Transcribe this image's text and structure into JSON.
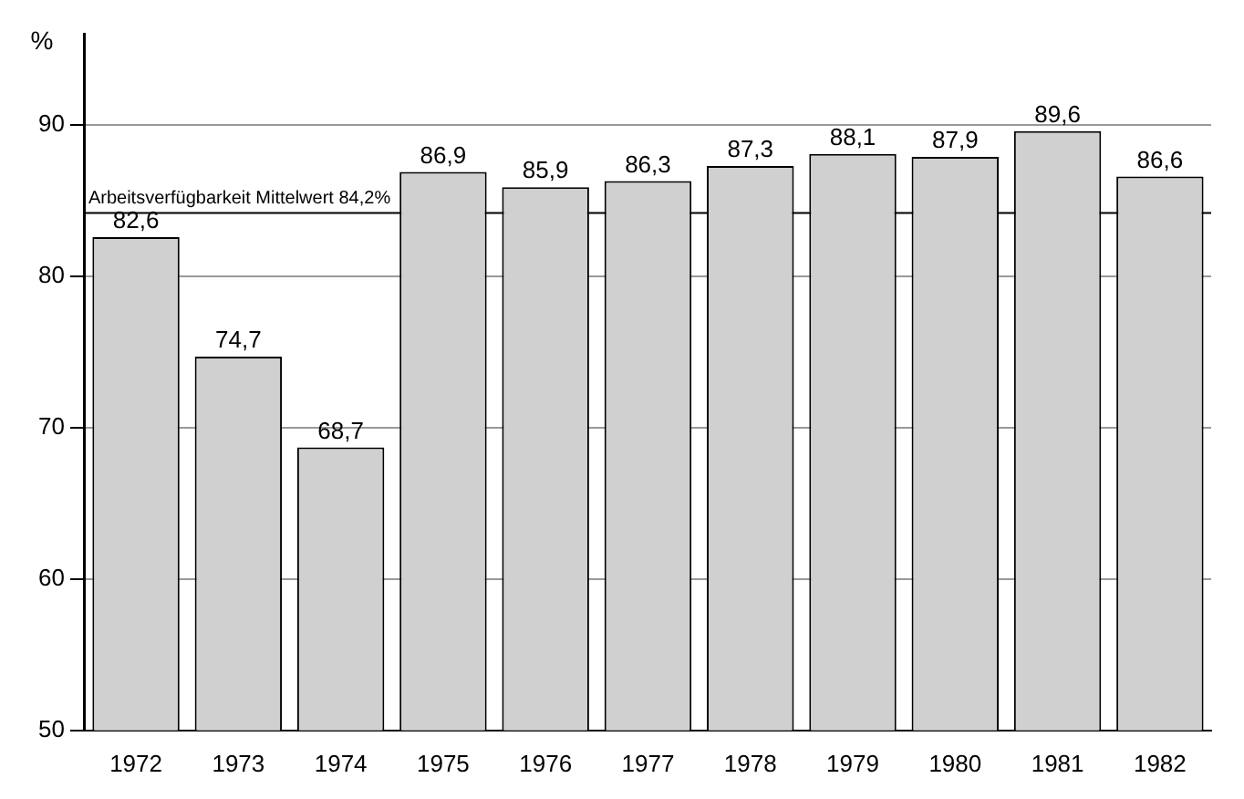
{
  "chart_data": {
    "type": "bar",
    "ylabel": "%",
    "categories": [
      "1972",
      "1973",
      "1974",
      "1975",
      "1976",
      "1977",
      "1978",
      "1979",
      "1980",
      "1981",
      "1982"
    ],
    "values": [
      82.6,
      74.7,
      68.7,
      86.9,
      85.9,
      86.3,
      87.3,
      88.1,
      87.9,
      89.6,
      86.6
    ],
    "value_labels": [
      "82,6",
      "74,7",
      "68,7",
      "86,9",
      "85,9",
      "86,3",
      "87,3",
      "88,1",
      "87,9",
      "89,6",
      "86,6"
    ],
    "color": "#d0d0d0",
    "ylim": [
      50,
      96
    ],
    "yticks": [
      50,
      60,
      70,
      80,
      90
    ],
    "grid": "y",
    "ref_lines": [
      {
        "axis": "y",
        "value": 84.2,
        "label": "Arbeitsverfügbarkeit Mittelwert 84,2%",
        "color": "#000000"
      }
    ]
  }
}
